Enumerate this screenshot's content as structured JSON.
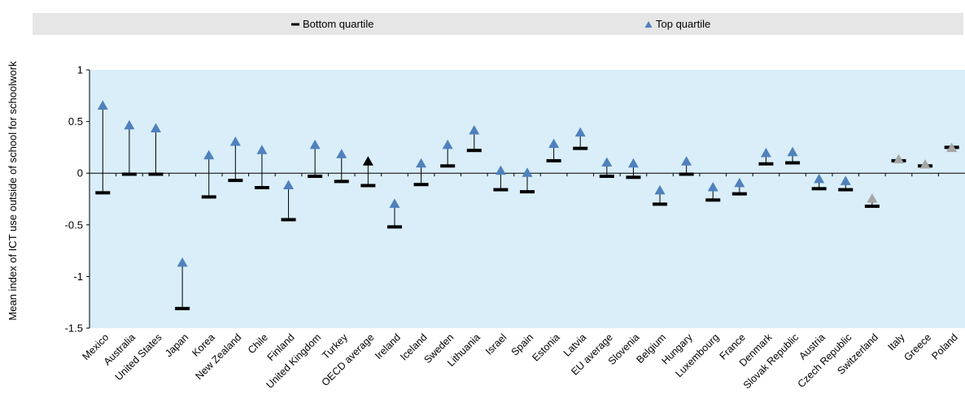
{
  "legend": {
    "bottom_label": "Bottom quartile",
    "top_label": "Top quartile"
  },
  "colors": {
    "plot_background": "#d9eef9",
    "legend_background": "#e6e6e6",
    "top_marker": "#4f81bd",
    "top_marker_highlight": "#000000",
    "top_marker_insignificant": "#a6a6a6",
    "bottom_marker": "#000000",
    "stem": "#000000"
  },
  "chart_data": {
    "type": "dot-range",
    "ylabel": "Mean index of ICT use outside of school for schoolwork",
    "xlabel": "",
    "ylim": [
      -1.5,
      1
    ],
    "yticks": [
      1,
      0.5,
      0,
      -0.5,
      -1,
      -1.5
    ],
    "ytick_labels": [
      "1",
      "0.5",
      "0",
      "-0.5",
      "-1",
      "-1.5"
    ],
    "grid": false,
    "legend_position": "top",
    "categories": [
      "Mexico",
      "Australia",
      "United States",
      "Japan",
      "Korea",
      "New Zealand",
      "Chile",
      "Finland",
      "United Kingdom",
      "Turkey",
      "OECD average",
      "Ireland",
      "Iceland",
      "Sweden",
      "Lithuania",
      "Israel",
      "Spain",
      "Estonia",
      "Latvia",
      "EU average",
      "Slovenia",
      "Belgium",
      "Hungary",
      "Luxembourg",
      "France",
      "Denmark",
      "Slovak Republic",
      "Austria",
      "Czech Republic",
      "Switzerland",
      "Italy",
      "Greece",
      "Poland"
    ],
    "series": [
      {
        "name": "Bottom quartile",
        "values": [
          -0.19,
          -0.01,
          -0.01,
          -1.31,
          -0.23,
          -0.07,
          -0.14,
          -0.45,
          -0.03,
          -0.08,
          -0.12,
          -0.52,
          -0.11,
          0.07,
          0.22,
          -0.16,
          -0.18,
          0.12,
          0.24,
          -0.03,
          -0.04,
          -0.3,
          -0.01,
          -0.26,
          -0.2,
          0.09,
          0.1,
          -0.15,
          -0.16,
          -0.32,
          0.12,
          0.07,
          0.25
        ]
      },
      {
        "name": "Top quartile",
        "values": [
          0.65,
          0.46,
          0.43,
          -0.87,
          0.17,
          0.3,
          0.22,
          -0.12,
          0.27,
          0.18,
          0.11,
          -0.3,
          0.09,
          0.27,
          0.41,
          0.02,
          0.0,
          0.28,
          0.39,
          0.1,
          0.09,
          -0.17,
          0.11,
          -0.14,
          -0.1,
          0.19,
          0.2,
          -0.06,
          -0.08,
          -0.25,
          0.13,
          0.08,
          0.24
        ]
      }
    ],
    "top_marker_style": [
      "normal",
      "normal",
      "normal",
      "normal",
      "normal",
      "normal",
      "normal",
      "normal",
      "normal",
      "normal",
      "highlight",
      "normal",
      "normal",
      "normal",
      "normal",
      "normal",
      "normal",
      "normal",
      "normal",
      "normal",
      "normal",
      "normal",
      "normal",
      "normal",
      "normal",
      "normal",
      "normal",
      "normal",
      "normal",
      "insignificant",
      "insignificant",
      "insignificant",
      "insignificant"
    ]
  }
}
